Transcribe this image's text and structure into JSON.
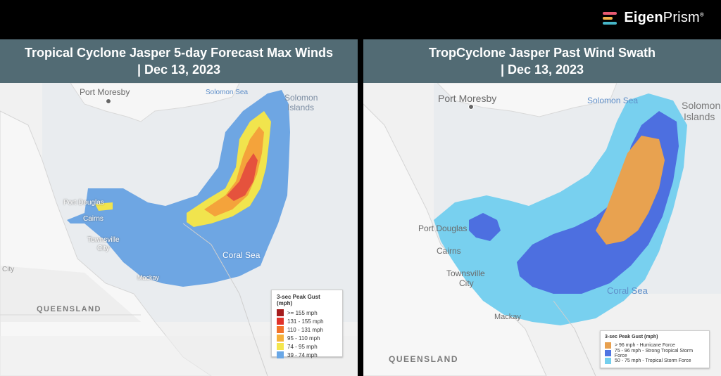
{
  "brand": {
    "prefix": "Eigen",
    "name": "Prism",
    "mark": "®"
  },
  "panels": [
    {
      "title_line1": "Tropical Cyclone Jasper 5-day Forecast Max Winds",
      "title_line2": "| Dec 13, 2023",
      "places": {
        "port_moresby": "Port Moresby",
        "solomon_sea": "Solomon Sea",
        "solomon_islands_1": "Solomon",
        "solomon_islands_2": "Islands",
        "port_douglas": "Port Douglas",
        "cairns": "Cairns",
        "townsville_1": "Townsville",
        "townsville_2": "City",
        "coral_sea": "Coral Sea",
        "mackay": "Mackay",
        "city": "City",
        "queensland": "QUEENSLAND"
      },
      "legend": {
        "title": "3-sec Peak Gust (mph)",
        "items": [
          {
            "label": ">= 155 mph",
            "color": "#a51c1c"
          },
          {
            "label": "131 - 155 mph",
            "color": "#e0322a"
          },
          {
            "label": "110 - 131 mph",
            "color": "#f2722a"
          },
          {
            "label": "95 - 110 mph",
            "color": "#f6b13b"
          },
          {
            "label": "74 - 95 mph",
            "color": "#f4e64e"
          },
          {
            "label": "39 - 74 mph",
            "color": "#69a7e6"
          }
        ]
      }
    },
    {
      "title_line1": "TropCyclone Jasper Past Wind Swath",
      "title_line2": "| Dec 13, 2023",
      "places": {
        "port_moresby": "Port Moresby",
        "solomon_sea": "Solomon Sea",
        "solomon_islands_1": "Solomon",
        "solomon_islands_2": "Islands",
        "port_douglas": "Port Douglas",
        "cairns": "Cairns",
        "townsville_1": "Townsville",
        "townsville_2": "City",
        "coral_sea": "Coral Sea",
        "mackay": "Mackay",
        "queensland": "QUEENSLAND"
      },
      "legend": {
        "title": "3-sec Peak Gust (mph)",
        "items": [
          {
            "label": "> 96 mph - Hurricane Force",
            "color": "#e8a04e"
          },
          {
            "label": "75 - 96 mph - Strong Tropical Storm Force",
            "color": "#4f74e2"
          },
          {
            "label": "50 - 75 mph - Tropical Storm Force",
            "color": "#74cfee"
          }
        ]
      }
    }
  ]
}
